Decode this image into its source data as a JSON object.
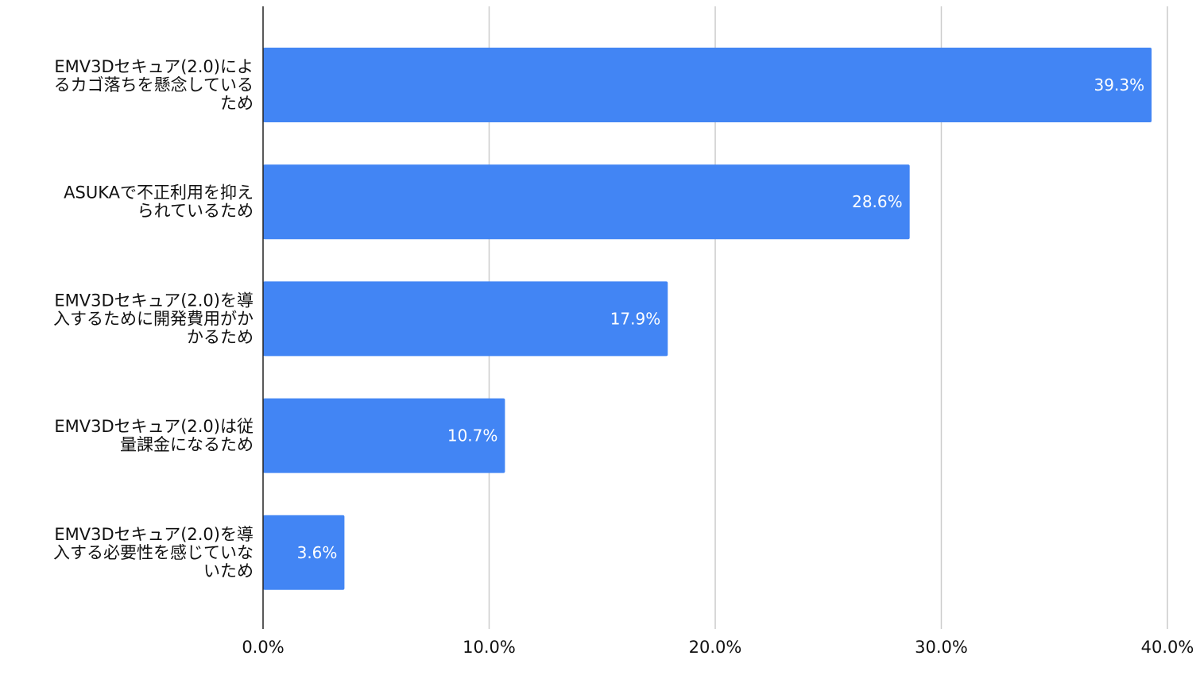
{
  "chart_data": {
    "type": "bar",
    "orientation": "horizontal",
    "title": "",
    "xlabel": "",
    "ylabel": "",
    "xlim": [
      0,
      40
    ],
    "x_ticks": [
      "0.0%",
      "10.0%",
      "20.0%",
      "30.0%",
      "40.0%"
    ],
    "grid": "vertical",
    "legend": "none",
    "bar_color": "#4285F4",
    "categories": [
      [
        "EMV3Dセキュア(2.0)によ",
        "るカゴ落ちを懸念している",
        "ため"
      ],
      [
        "ASUKAで不正利用を抑え",
        "られているため"
      ],
      [
        "EMV3Dセキュア(2.0)を導",
        "入するために開発費用がか",
        "かるため"
      ],
      [
        "EMV3Dセキュア(2.0)は従",
        "量課金になるため"
      ],
      [
        "EMV3Dセキュア(2.0)を導",
        "入する必要性を感じていな",
        "いため"
      ]
    ],
    "values": [
      39.3,
      28.6,
      17.9,
      10.7,
      3.6
    ],
    "data_labels": [
      "39.3%",
      "28.6%",
      "17.9%",
      "10.7%",
      "3.6%"
    ]
  }
}
